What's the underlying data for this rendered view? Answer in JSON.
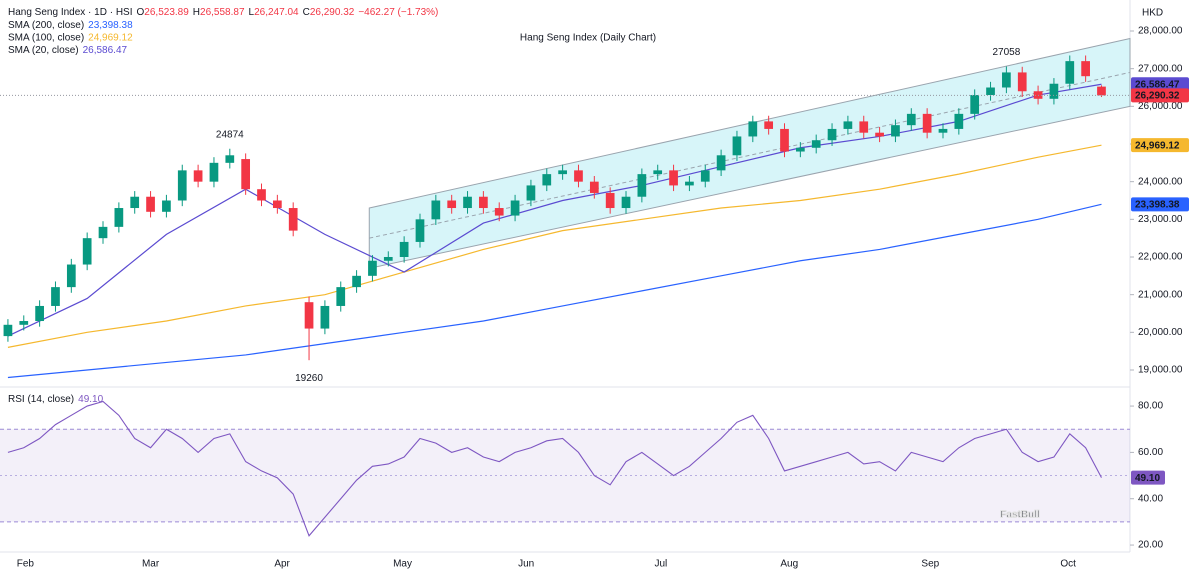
{
  "header": {
    "symbol": "Hang Seng Index · 1D · HSI",
    "ohlc": [
      {
        "label": "O",
        "value": "26,523.89"
      },
      {
        "label": "H",
        "value": "26,558.87"
      },
      {
        "label": "L",
        "value": "26,247.04"
      },
      {
        "label": "C",
        "value": "26,290.32"
      }
    ],
    "change": "−462.27 (−1.73%)"
  },
  "watermark": "FastBull",
  "chart_data": [
    {
      "type": "candlestick",
      "title": "Hang Seng Index (Daily Chart)",
      "currency": "HKD",
      "x": [
        0,
        1,
        2,
        3,
        4,
        5,
        6,
        7,
        8,
        9,
        10,
        11,
        12,
        13,
        14,
        15,
        16,
        17,
        18,
        19,
        20,
        21,
        22,
        23,
        24,
        25,
        26,
        27,
        28,
        29,
        30,
        31,
        32,
        33,
        34,
        35,
        36,
        37,
        38,
        39,
        40,
        41,
        42,
        43,
        44,
        45,
        46,
        47,
        48,
        49,
        50,
        51,
        52,
        53,
        54,
        55,
        56,
        57,
        58,
        59,
        60,
        61,
        62,
        63,
        64,
        65,
        66,
        67,
        68,
        69
      ],
      "open": [
        19900,
        20200,
        20300,
        20700,
        21200,
        21800,
        22500,
        22800,
        23300,
        23600,
        23200,
        23500,
        24300,
        24000,
        24500,
        24600,
        23800,
        23500,
        23300,
        20800,
        20100,
        20700,
        21200,
        21500,
        21900,
        22000,
        22400,
        23000,
        23500,
        23300,
        23600,
        23300,
        23100,
        23500,
        23900,
        24200,
        24300,
        24000,
        23700,
        23300,
        23600,
        24200,
        24300,
        23900,
        24000,
        24300,
        24700,
        25200,
        25600,
        25400,
        24800,
        24900,
        25100,
        25400,
        25600,
        25300,
        25200,
        25500,
        25800,
        25300,
        25400,
        25800,
        26300,
        26500,
        26900,
        26400,
        26200,
        26600,
        27200,
        26523.89
      ],
      "high": [
        20350,
        20450,
        20850,
        21350,
        21950,
        22650,
        22950,
        23450,
        23750,
        23750,
        23650,
        24450,
        24450,
        24650,
        24874,
        24750,
        23950,
        23650,
        23450,
        20950,
        20850,
        21350,
        21650,
        22050,
        22150,
        22550,
        23150,
        23650,
        23650,
        23750,
        23750,
        23450,
        23650,
        24050,
        24350,
        24450,
        24450,
        24150,
        23850,
        23750,
        24350,
        24450,
        24450,
        24150,
        24450,
        24850,
        25350,
        25750,
        25750,
        25550,
        25050,
        25250,
        25550,
        25750,
        25750,
        25450,
        25650,
        25950,
        25950,
        25550,
        25950,
        26450,
        26650,
        27058,
        27050,
        26550,
        26750,
        27350,
        27350,
        26558.87
      ],
      "low": [
        19750,
        20050,
        20150,
        20550,
        21050,
        21650,
        22350,
        22650,
        23150,
        23050,
        23050,
        23350,
        23850,
        23850,
        24350,
        23650,
        23350,
        23150,
        22550,
        19260,
        19950,
        20550,
        21050,
        21350,
        21750,
        21850,
        22250,
        22850,
        23150,
        23150,
        23150,
        22950,
        22950,
        23350,
        23750,
        24050,
        23850,
        23550,
        23150,
        23150,
        23450,
        24050,
        23750,
        23750,
        23850,
        24150,
        24550,
        25050,
        25250,
        24650,
        24650,
        24750,
        24950,
        25250,
        25150,
        25050,
        25050,
        25350,
        25150,
        25150,
        25250,
        25650,
        26150,
        26350,
        26250,
        26050,
        26050,
        26450,
        26650,
        26247.04
      ],
      "close": [
        20200,
        20300,
        20700,
        21200,
        21800,
        22500,
        22800,
        23300,
        23600,
        23200,
        23500,
        24300,
        24000,
        24500,
        24700,
        23800,
        23500,
        23300,
        22700,
        20100,
        20700,
        21200,
        21500,
        21900,
        22000,
        22400,
        23000,
        23500,
        23300,
        23600,
        23300,
        23100,
        23500,
        23900,
        24200,
        24300,
        24000,
        23700,
        23300,
        23600,
        24200,
        24300,
        23900,
        24000,
        24300,
        24700,
        25200,
        25600,
        25400,
        24800,
        24900,
        25100,
        25400,
        25600,
        25300,
        25200,
        25500,
        25800,
        25300,
        25400,
        25800,
        26300,
        26500,
        26900,
        26400,
        26200,
        26600,
        27200,
        26800,
        26290.32
      ],
      "up_color": "#089981",
      "down_color": "#f23645",
      "last_label": "26,290.32",
      "overlays": [
        {
          "name": "SMA (200, close)",
          "color": "#2962ff",
          "text_color": "#ffffff",
          "x": [
            0,
            5,
            10,
            15,
            20,
            25,
            30,
            35,
            40,
            45,
            50,
            55,
            60,
            65,
            69
          ],
          "values": [
            18800,
            19000,
            19200,
            19400,
            19700,
            20000,
            20300,
            20700,
            21100,
            21500,
            21900,
            22200,
            22600,
            23000,
            23398.38
          ],
          "value_label": "23,398.38"
        },
        {
          "name": "SMA (100, close)",
          "color": "#f5b82e",
          "text_color": "#131722",
          "x": [
            0,
            5,
            10,
            15,
            20,
            25,
            30,
            35,
            40,
            45,
            50,
            55,
            60,
            65,
            69
          ],
          "values": [
            19600,
            20000,
            20300,
            20700,
            21000,
            21600,
            22200,
            22700,
            23000,
            23300,
            23500,
            23800,
            24200,
            24650,
            24969.12
          ],
          "value_label": "24,969.12"
        },
        {
          "name": "SMA (20, close)",
          "color": "#5b4bd1",
          "text_color": "#ffffff",
          "x": [
            0,
            5,
            10,
            15,
            20,
            25,
            30,
            35,
            40,
            45,
            50,
            55,
            60,
            65,
            69
          ],
          "values": [
            19900,
            20900,
            22600,
            23800,
            22600,
            21600,
            22900,
            23500,
            23900,
            24400,
            24900,
            25200,
            25600,
            26300,
            26586.47
          ],
          "value_label": "26,586.47"
        }
      ],
      "channel": {
        "x": [
          22.8,
          70.8
        ],
        "upper": [
          23300,
          27800
        ],
        "middle": [
          22500,
          26900
        ],
        "lower": [
          21700,
          26000
        ],
        "color": "#c9f1f7"
      },
      "annotations": [
        {
          "x": 14,
          "value": 24874
        },
        {
          "x": 63,
          "value": 27058
        },
        {
          "x": 19,
          "value": 19260
        }
      ],
      "xlim": [
        -0.5,
        70.8
      ],
      "ylim": [
        18575,
        28823
      ],
      "yticks": [
        {
          "value": 19000,
          "label": "19,000.00"
        },
        {
          "value": 20000,
          "label": "20,000.00"
        },
        {
          "value": 21000,
          "label": "21,000.00"
        },
        {
          "value": 22000,
          "label": "22,000.00"
        },
        {
          "value": 23000,
          "label": "23,000.00"
        },
        {
          "value": 24000,
          "label": "24,000.00"
        },
        {
          "value": 25000,
          "label": "25,000.00"
        },
        {
          "value": 26000,
          "label": "26,000.00"
        },
        {
          "value": 27000,
          "label": "27,000.00"
        },
        {
          "value": 28000,
          "label": "28,000.00"
        }
      ]
    },
    {
      "type": "line",
      "name": "RSI (14, close)",
      "color": "#7e57c2",
      "x": [
        0,
        1,
        2,
        3,
        4,
        5,
        6,
        7,
        8,
        9,
        10,
        11,
        12,
        13,
        14,
        15,
        16,
        17,
        18,
        19,
        20,
        21,
        22,
        23,
        24,
        25,
        26,
        27,
        28,
        29,
        30,
        31,
        32,
        33,
        34,
        35,
        36,
        37,
        38,
        39,
        40,
        41,
        42,
        43,
        44,
        45,
        46,
        47,
        48,
        49,
        50,
        51,
        52,
        53,
        54,
        55,
        56,
        57,
        58,
        59,
        60,
        61,
        62,
        63,
        64,
        65,
        66,
        67,
        68,
        69
      ],
      "values": [
        60,
        62,
        66,
        72,
        76,
        80,
        82,
        76,
        66,
        62,
        70,
        66,
        60,
        66,
        68,
        56,
        52,
        49,
        42,
        24,
        32,
        40,
        48,
        54,
        55,
        58,
        66,
        64,
        60,
        62,
        58,
        56,
        60,
        62,
        65,
        66,
        60,
        50,
        46,
        56,
        60,
        55,
        50,
        54,
        60,
        66,
        73,
        76,
        66,
        52,
        54,
        56,
        58,
        60,
        55,
        56,
        52,
        60,
        58,
        56,
        62,
        66,
        68,
        70,
        60,
        56,
        58,
        68,
        62,
        49.1
      ],
      "value_label": "49.10",
      "bands": [
        30,
        70
      ],
      "midline": 50,
      "xlim": [
        -0.5,
        70.8
      ],
      "ylim": [
        17,
        87.8
      ],
      "yticks": [
        {
          "value": 20,
          "label": "20.00"
        },
        {
          "value": 40,
          "label": "40.00"
        },
        {
          "value": 60,
          "label": "60.00"
        },
        {
          "value": 80,
          "label": "80.00"
        }
      ],
      "xticks": [
        {
          "value": 1.1,
          "label": "Feb"
        },
        {
          "value": 9,
          "label": "Mar"
        },
        {
          "value": 17.3,
          "label": "Apr"
        },
        {
          "value": 24.9,
          "label": "May"
        },
        {
          "value": 32.7,
          "label": "Jun"
        },
        {
          "value": 41.2,
          "label": "Jul"
        },
        {
          "value": 49.3,
          "label": "Aug"
        },
        {
          "value": 58.2,
          "label": "Sep"
        },
        {
          "value": 66.9,
          "label": "Oct"
        }
      ]
    }
  ]
}
